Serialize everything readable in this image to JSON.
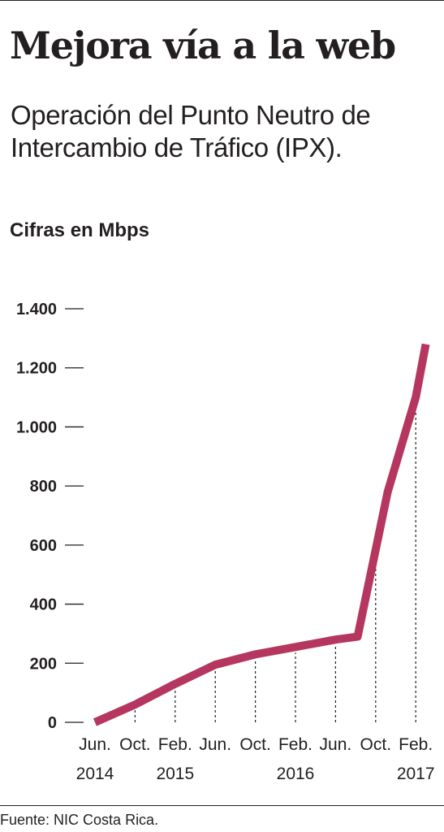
{
  "title": "Mejora vía a la web",
  "subtitle": "Operación del Punto Neutro de Intercambio de Tráfico (IPX).",
  "units_label": "Cifras en Mbps",
  "source": "Fuente: NIC Costa Rica.",
  "chart_data": {
    "type": "line",
    "title": "Mejora vía a la web",
    "subtitle": "Operación del Punto Neutro de Intercambio de Tráfico (IPX).",
    "ylabel": "Cifras en Mbps",
    "xlabel": "",
    "ylim": [
      0,
      1400
    ],
    "yticks": [
      0,
      200,
      400,
      600,
      800,
      1000,
      1200,
      1400
    ],
    "ytick_labels": [
      "0",
      "200",
      "400",
      "600",
      "800",
      "1.000",
      "1.200",
      "1.400"
    ],
    "x_ticks": [
      {
        "month": "Jun.",
        "year": "2014",
        "pos": 0
      },
      {
        "month": "Oct.",
        "pos": 1
      },
      {
        "month": "Feb.",
        "year": "2015",
        "pos": 2
      },
      {
        "month": "Jun.",
        "pos": 3
      },
      {
        "month": "Oct.",
        "pos": 4
      },
      {
        "month": "Feb.",
        "year": "2016",
        "pos": 5
      },
      {
        "month": "Jun.",
        "pos": 6
      },
      {
        "month": "Oct.",
        "pos": 7
      },
      {
        "month": "Feb.",
        "year": "2017",
        "pos": 8
      }
    ],
    "series": [
      {
        "color": "#b5365f",
        "points": [
          {
            "x": 0,
            "y": 0
          },
          {
            "x": 1,
            "y": 60
          },
          {
            "x": 2,
            "y": 130
          },
          {
            "x": 3,
            "y": 195
          },
          {
            "x": 4,
            "y": 230
          },
          {
            "x": 5,
            "y": 255
          },
          {
            "x": 6,
            "y": 280
          },
          {
            "x": 6.55,
            "y": 290
          },
          {
            "x": 7.3,
            "y": 780
          },
          {
            "x": 8,
            "y": 1100
          },
          {
            "x": 8.25,
            "y": 1280
          }
        ]
      }
    ],
    "dashed_dropline_positions": [
      1,
      2,
      3,
      4,
      5,
      6,
      7,
      8
    ],
    "grid": false,
    "colors": {
      "line": "#b5365f",
      "text": "#231f20",
      "ticks": "#231f20"
    }
  }
}
